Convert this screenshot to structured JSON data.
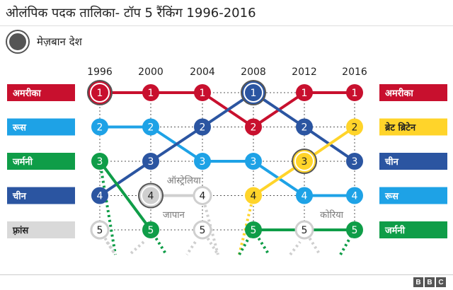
{
  "title": "ओलंपिक पदक तालिका- टॉप 5 रैंकिंग 1996-2016",
  "legend": {
    "host_label": "मेज़बान देश",
    "host_color": "#555555"
  },
  "branding": {
    "letters": [
      "B",
      "B",
      "C"
    ]
  },
  "chart_data": {
    "type": "line",
    "title": "ओलंपिक पदक तालिका- टॉप 5 रैंकिंग 1996-2016",
    "x": [
      "1996",
      "2000",
      "2004",
      "2008",
      "2012",
      "2016"
    ],
    "y_axis": {
      "range": [
        1,
        5
      ],
      "inverted": true,
      "meaning": "rank"
    },
    "grid": true,
    "left_labels": [
      {
        "text": "अमरीका",
        "color": "#c8102e",
        "rank": 1
      },
      {
        "text": "रूस",
        "color": "#1ea2e6",
        "rank": 2
      },
      {
        "text": "जर्मनी",
        "color": "#0f9d48",
        "rank": 3
      },
      {
        "text": "चीन",
        "color": "#2b55a1",
        "rank": 4
      },
      {
        "text": "फ़्रांस",
        "color": "#d9d9d9",
        "text_color": "#222222",
        "rank": 5
      }
    ],
    "right_labels": [
      {
        "text": "अमरीका",
        "color": "#c8102e",
        "text_color": "#ffffff",
        "rank": 1
      },
      {
        "text": "ब्रेट ब्रिटेन",
        "color": "#ffd42a",
        "text_color": "#222222",
        "rank": 2
      },
      {
        "text": "चीन",
        "color": "#2b55a1",
        "text_color": "#ffffff",
        "rank": 3
      },
      {
        "text": "रूस",
        "color": "#1ea2e6",
        "text_color": "#ffffff",
        "rank": 4
      },
      {
        "text": "जर्मनी",
        "color": "#0f9d48",
        "text_color": "#ffffff",
        "rank": 5
      }
    ],
    "series": [
      {
        "name": "अमरीका",
        "color": "#c8102e",
        "ranks": [
          1,
          1,
          1,
          2,
          1,
          1
        ],
        "host_index": 0,
        "exit_after": null
      },
      {
        "name": "रूस",
        "color": "#1ea2e6",
        "ranks": [
          2,
          2,
          3,
          3,
          4,
          4
        ],
        "host_index": null,
        "exit_after": null
      },
      {
        "name": "चीन",
        "color": "#2b55a1",
        "ranks": [
          4,
          3,
          2,
          1,
          2,
          3
        ],
        "host_index": 3,
        "exit_after": null
      },
      {
        "name": "जर्मनी",
        "color": "#0f9d48",
        "ranks": [
          3,
          null,
          null,
          null,
          null,
          null
        ],
        "host_index": null,
        "exit_after": 0
      },
      {
        "name": "जर्मनी",
        "color": "#0f9d48",
        "ranks": [
          null,
          5,
          null,
          null,
          null,
          null
        ],
        "host_index": null,
        "exit_after": 1
      },
      {
        "name": "ऑस्ट्रेलिया",
        "color": "#cfcfcf",
        "ranks": [
          null,
          4,
          4,
          null,
          null,
          null
        ],
        "host_index": 1,
        "exit_after": 2
      },
      {
        "name": "ब्रेट ब्रिटेन",
        "color": "#ffd42a",
        "ranks": [
          null,
          null,
          null,
          4,
          3,
          2
        ],
        "host_index": 4,
        "exit_after": null
      },
      {
        "name": "जापान",
        "color": "#cfcfcf",
        "ranks": [
          null,
          null,
          5,
          null,
          null,
          null
        ],
        "host_index": null,
        "exit_after": 2
      },
      {
        "name": "कोरिया",
        "color": "#cfcfcf",
        "ranks": [
          null,
          null,
          null,
          null,
          5,
          null
        ],
        "host_index": null,
        "exit_after": 4
      },
      {
        "name": "जर्मनी",
        "color": "#0f9d48",
        "ranks": [
          null,
          null,
          null,
          5,
          null,
          5
        ],
        "host_index": null,
        "exit_after": null
      },
      {
        "name": "फ़्रांस",
        "color": "#cfcfcf",
        "ranks": [
          5,
          null,
          null,
          null,
          null,
          null
        ],
        "host_index": null,
        "exit_after": 0
      }
    ],
    "annotations": [
      {
        "text": "ऑस्ट्रेलिया",
        "year_index": 1.65,
        "rank": 3.55
      },
      {
        "text": "जापान",
        "year_index": 1.45,
        "rank": 4.55
      },
      {
        "text": "कोरिया",
        "year_index": 4.55,
        "rank": 4.55
      }
    ]
  }
}
